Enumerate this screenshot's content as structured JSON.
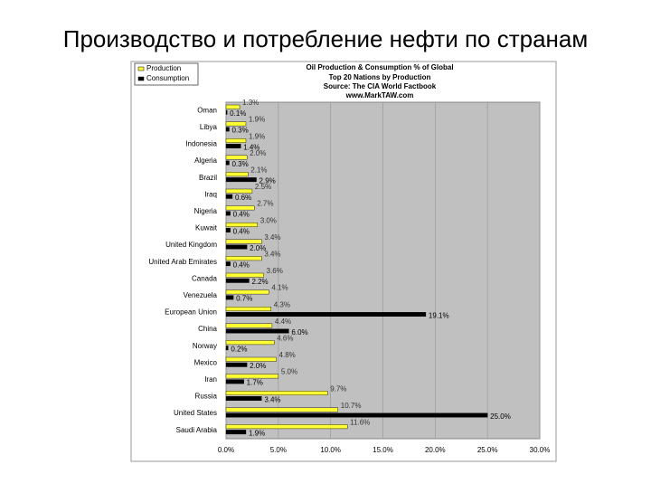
{
  "slide_title": "Производство и потребление нефти по странам",
  "chart_data": {
    "type": "bar",
    "orientation": "horizontal",
    "title": "Oil Production & Consumption % of Global",
    "subtitles": [
      "Top 20 Nations by Production",
      "Source: The CIA World Factbook",
      "www.MarkTAW.com"
    ],
    "categories": [
      "Oman",
      "Libya",
      "Indonesia",
      "Algeria",
      "Brazil",
      "Iraq",
      "Nigeria",
      "Kuwait",
      "United Kingdom",
      "United Arab Emirates",
      "Canada",
      "Venezuela",
      "European Union",
      "China",
      "Norway",
      "Mexico",
      "Iran",
      "Russia",
      "United States",
      "Saudi Arabia"
    ],
    "series": [
      {
        "name": "Production",
        "color": "#ffff33",
        "values": [
          1.3,
          1.9,
          1.9,
          2.0,
          2.1,
          2.5,
          2.7,
          3.0,
          3.4,
          3.4,
          3.6,
          4.1,
          4.3,
          4.4,
          4.6,
          4.8,
          5.0,
          9.7,
          10.7,
          11.6
        ],
        "value_labels": [
          "1.3%",
          "1.9%",
          "1.9%",
          "2.0%",
          "2.1%",
          "2.5%",
          "2.7%",
          "3.0%",
          "3.4%",
          "3.4%",
          "3.6%",
          "4.1%",
          "4.3%",
          "4.4%",
          "4.6%",
          "4.8%",
          "5.0%",
          "9.7%",
          "10.7%",
          "11.6%"
        ]
      },
      {
        "name": "Consumption",
        "color": "#000000",
        "values": [
          0.1,
          0.3,
          1.4,
          0.3,
          2.9,
          0.6,
          0.4,
          0.4,
          2.0,
          0.4,
          2.2,
          0.7,
          19.1,
          6.0,
          0.2,
          2.0,
          1.7,
          3.4,
          25.0,
          1.9
        ],
        "value_labels": [
          "0.1%",
          "0.3%",
          "1.4%",
          "0.3%",
          "2.9%",
          "0.6%",
          "0.4%",
          "0.4%",
          "2.0%",
          "0.4%",
          "2.2%",
          "0.7%",
          "19.1%",
          "6.0%",
          "0.2%",
          "2.0%",
          "1.7%",
          "3.4%",
          "25.0%",
          "1.9%"
        ]
      }
    ],
    "xlim": [
      0,
      30
    ],
    "xticks": [
      {
        "value": 0,
        "label": "0.0%"
      },
      {
        "value": 5,
        "label": "5.0%"
      },
      {
        "value": 10,
        "label": "10.0%"
      },
      {
        "value": 15,
        "label": "15.0%"
      },
      {
        "value": 20,
        "label": "20.0%"
      },
      {
        "value": 25,
        "label": "25.0%"
      },
      {
        "value": 30,
        "label": "30.0%"
      }
    ],
    "grid": true,
    "legend": "top-left"
  }
}
